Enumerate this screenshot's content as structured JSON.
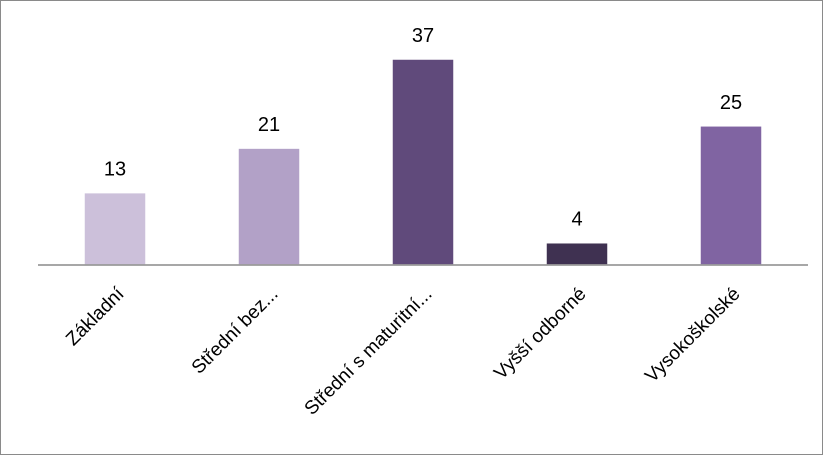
{
  "chart_data": {
    "type": "bar",
    "categories": [
      "Základní",
      "Střední bez...",
      "Střední s maturitní...",
      "Vyšší odborné",
      "Vysokoškolské"
    ],
    "values": [
      13,
      21,
      37,
      4,
      25
    ],
    "colors": [
      "#ccc0da",
      "#b2a1c7",
      "#604a7b",
      "#3f3151",
      "#8064a2"
    ],
    "ylim": [
      0,
      37
    ],
    "grid": false,
    "legend": "none"
  }
}
